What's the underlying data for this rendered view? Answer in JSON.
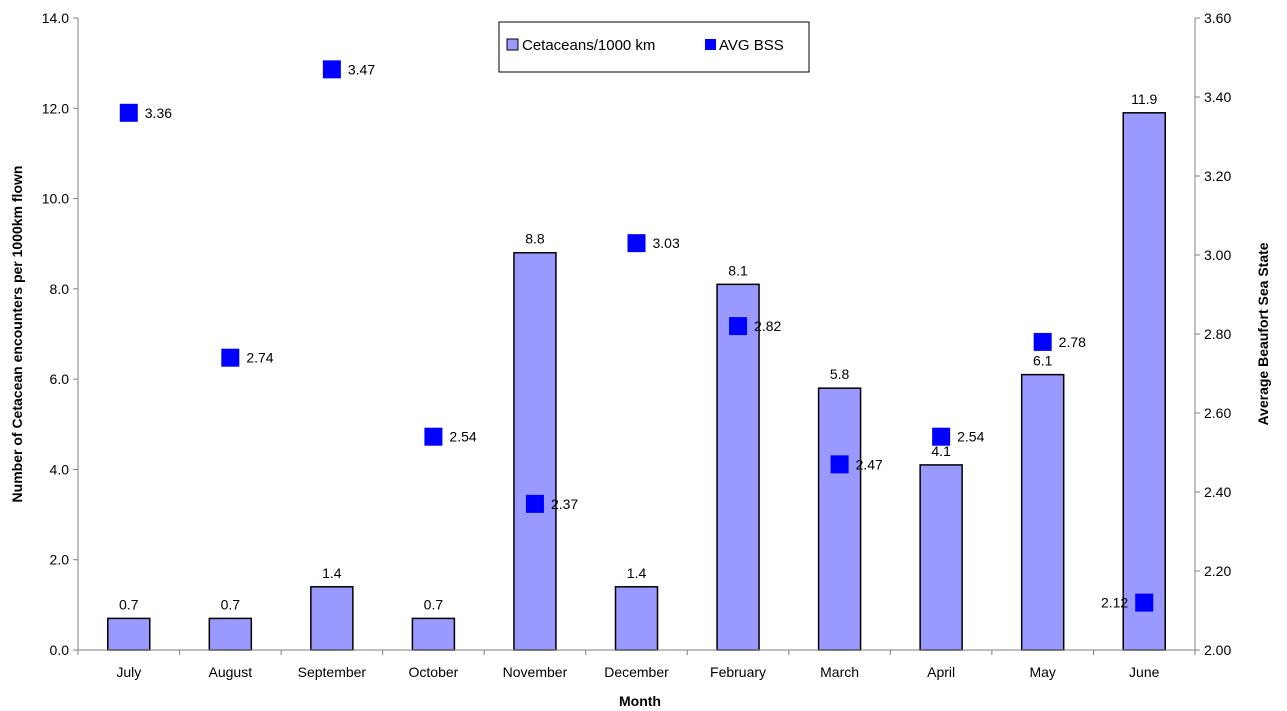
{
  "chart_data": {
    "type": "bar",
    "categories": [
      "July",
      "August",
      "September",
      "October",
      "November",
      "December",
      "February",
      "March",
      "April",
      "May",
      "June"
    ],
    "series": [
      {
        "name": "Cetaceans/1000 km",
        "type": "bar",
        "axis": "left",
        "values": [
          0.7,
          0.7,
          1.4,
          0.7,
          8.8,
          1.4,
          8.1,
          5.8,
          4.1,
          6.1,
          11.9
        ],
        "labels": [
          "0.7",
          "0.7",
          "1.4",
          "0.7",
          "8.8",
          "1.4",
          "8.1",
          "5.8",
          "4.1",
          "6.1",
          "11.9"
        ],
        "color": "#9999ff"
      },
      {
        "name": "AVG BSS",
        "type": "scatter",
        "axis": "right",
        "values": [
          3.36,
          2.74,
          3.47,
          2.54,
          2.37,
          3.03,
          2.82,
          2.47,
          2.54,
          2.78,
          2.12
        ],
        "labels": [
          "3.36",
          "2.74",
          "3.47",
          "2.54",
          "2.37",
          "3.03",
          "2.82",
          "2.47",
          "2.54",
          "2.78",
          "2.12"
        ],
        "color": "#0000ff"
      }
    ],
    "xlabel": "Month",
    "ylabel": "Number of Cetacean encounters per 1000km flown",
    "y2label": "Average Beaufort Sea State",
    "ylim": [
      0,
      14
    ],
    "y2lim": [
      2.0,
      3.6
    ],
    "yticks": [
      "0.0",
      "2.0",
      "4.0",
      "6.0",
      "8.0",
      "10.0",
      "12.0",
      "14.0"
    ],
    "y2ticks": [
      "2.00",
      "2.20",
      "2.40",
      "2.60",
      "2.80",
      "3.00",
      "3.20",
      "3.40",
      "3.60"
    ],
    "legend_position": "top-center",
    "grid": false
  }
}
